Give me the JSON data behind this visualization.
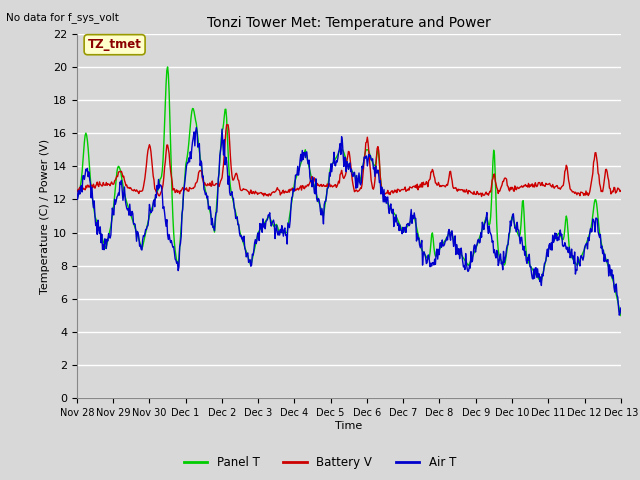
{
  "title": "Tonzi Tower Met: Temperature and Power",
  "top_left_text": "No data for f_sys_volt",
  "ylabel": "Temperature (C) / Power (V)",
  "xlabel": "Time",
  "ylim": [
    0,
    22
  ],
  "yticks": [
    0,
    2,
    4,
    6,
    8,
    10,
    12,
    14,
    16,
    18,
    20,
    22
  ],
  "bg_color": "#d8d8d8",
  "plot_bg_color": "#d8d8d8",
  "grid_color": "#ffffff",
  "legend_label_box": "TZ_tmet",
  "legend_box_color": "#ffffcc",
  "legend_box_edge": "#999900",
  "panel_t_color": "#00cc00",
  "battery_v_color": "#cc0000",
  "air_t_color": "#0000cc",
  "line_width": 1.0,
  "xtick_labels": [
    "Nov 28",
    "Nov 29",
    "Nov 30",
    "Dec 1",
    "Dec 2",
    "Dec 3",
    "Dec 4",
    "Dec 5",
    "Dec 6",
    "Dec 7",
    "Dec 8",
    "Dec 9",
    "Dec 10",
    "Dec 11",
    "Dec 12",
    "Dec 13"
  ],
  "xtick_positions": [
    0,
    1,
    2,
    3,
    4,
    5,
    6,
    7,
    8,
    9,
    10,
    11,
    12,
    13,
    14,
    15
  ]
}
